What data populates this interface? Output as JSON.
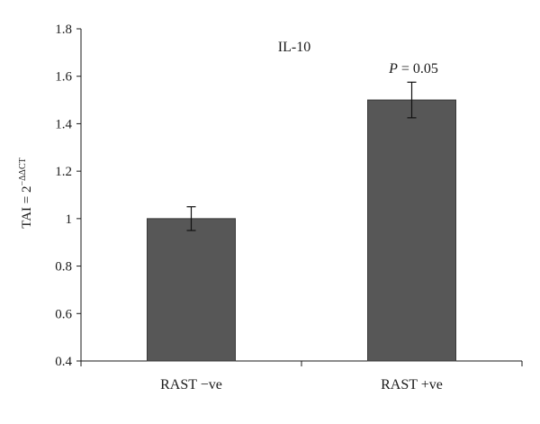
{
  "chart_data": {
    "type": "bar",
    "title": "IL-10",
    "categories": [
      "RAST −ve",
      "RAST +ve"
    ],
    "values": [
      1.0,
      1.5
    ],
    "errors": [
      0.05,
      0.075
    ],
    "ylim": [
      0.4,
      1.8
    ],
    "yticks": [
      0.4,
      0.6,
      0.8,
      1,
      1.2,
      1.4,
      1.6,
      1.8
    ],
    "ylabel": {
      "base": "TAI = 2",
      "superscript": "−ΔΔCT"
    },
    "annotation": {
      "category": "RAST +ve",
      "italic_part": "P",
      "text": " = 0.05"
    },
    "colors": {
      "bar": "#575757",
      "axis": "#1a1a1a"
    },
    "grid": false
  }
}
